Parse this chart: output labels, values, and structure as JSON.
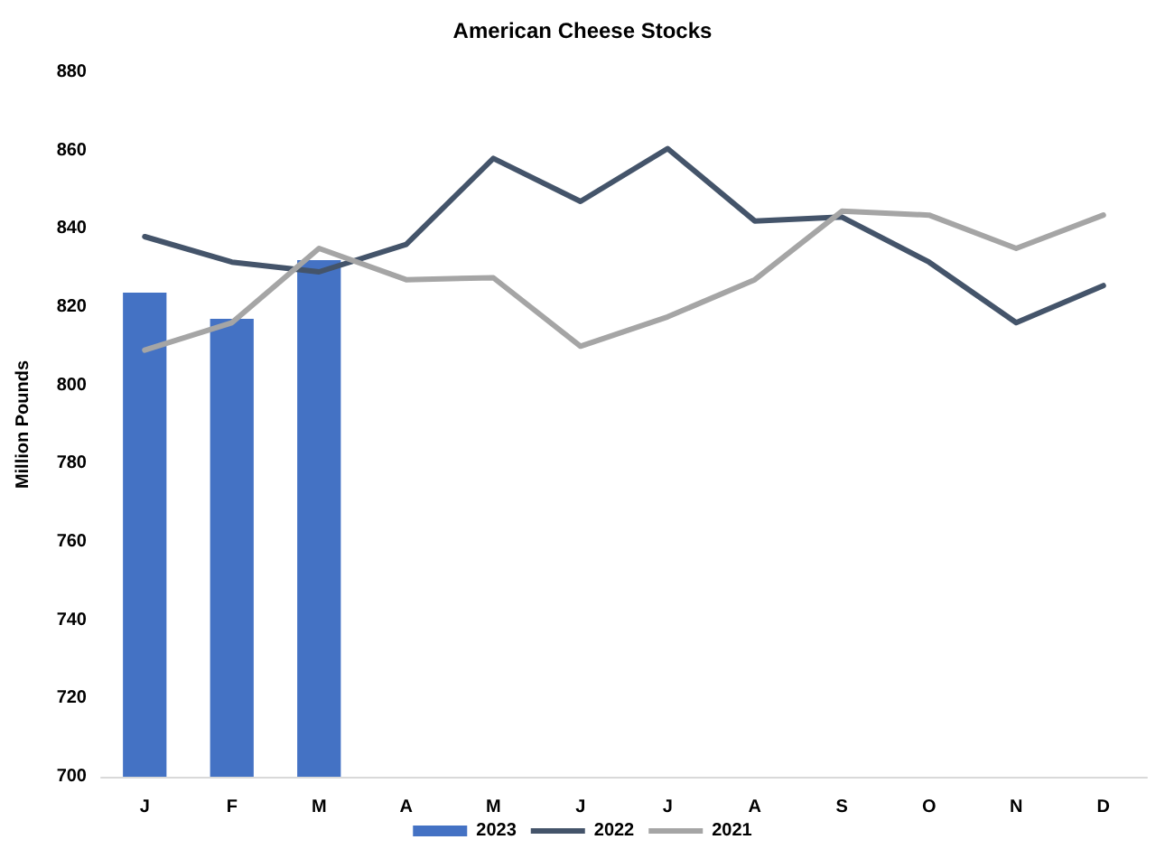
{
  "chart_data": {
    "type": "line",
    "title": "American Cheese Stocks",
    "ylabel": "Million Pounds",
    "categories": [
      "J",
      "F",
      "M",
      "A",
      "M",
      "J",
      "J",
      "A",
      "S",
      "O",
      "N",
      "D"
    ],
    "series": [
      {
        "name": "2023",
        "type": "bar",
        "color": "#4472c4",
        "values": [
          823.7,
          817,
          832,
          null,
          null,
          null,
          null,
          null,
          null,
          null,
          null,
          null
        ]
      },
      {
        "name": "2022",
        "color": "#44546a",
        "values": [
          838,
          831.5,
          829,
          836,
          858,
          847,
          860.5,
          842,
          843,
          831.5,
          816,
          825.5
        ]
      },
      {
        "name": "2021",
        "color": "#a5a5a5",
        "values": [
          809,
          816,
          835,
          827,
          827.5,
          810,
          817.5,
          827,
          844.5,
          843.5,
          835,
          843.5
        ]
      }
    ],
    "ylim": [
      700,
      880
    ],
    "yticks": [
      700,
      720,
      740,
      760,
      780,
      800,
      820,
      840,
      860,
      880
    ],
    "grid": false,
    "legend": "bottom",
    "marker": "none",
    "line_style": "solid"
  }
}
